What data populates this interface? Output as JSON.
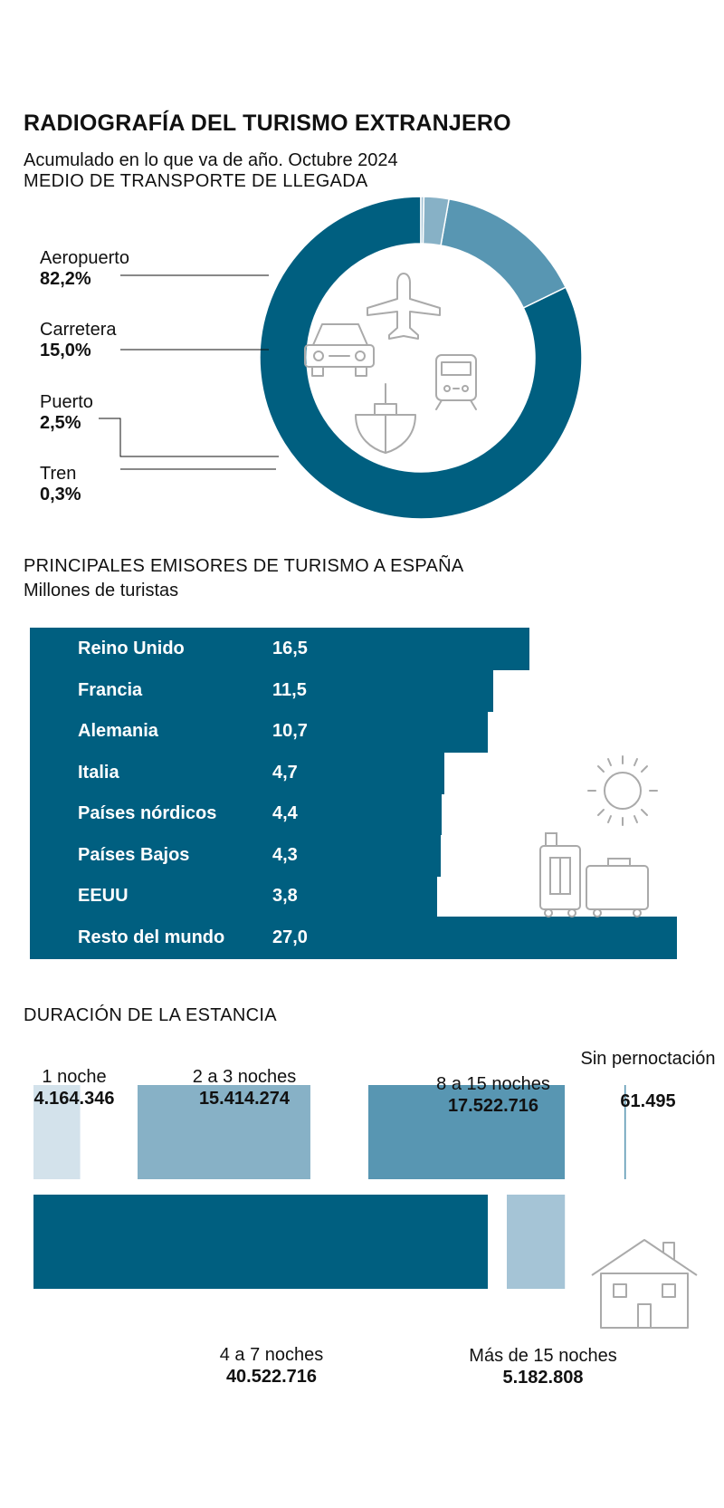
{
  "header": {
    "title": "RADIOGRAFÍA DEL TURISMO EXTRANJERO",
    "subtitle": "Acumulado en lo que va de año. Octubre 2024"
  },
  "transport": {
    "section_title": "MEDIO DE TRANSPORTE DE LLEGADA",
    "icons": [
      "plane-icon",
      "car-icon",
      "train-icon",
      "ship-icon"
    ]
  },
  "emitters": {
    "section_title": "PRINCIPALES EMISORES DE TURISMO A ESPAÑA",
    "unit_label": "Millones de turistas",
    "icons": [
      "sun-icon",
      "luggage-icon"
    ]
  },
  "stay": {
    "section_title": "DURACIÓN DE LA ESTANCIA",
    "icons": [
      "house-icon"
    ]
  },
  "colors": {
    "dark": "#005f80",
    "mid": "#5896b2",
    "light": "#87b1c6",
    "pale": "#a5c4d6",
    "palest": "#d3e2eb"
  },
  "chart_data": [
    {
      "type": "pie",
      "title": "MEDIO DE TRANSPORTE DE LLEGADA",
      "labels": [
        "Aeropuerto",
        "Carretera",
        "Puerto",
        "Tren"
      ],
      "display_values": [
        "82,2%",
        "15,0%",
        "2,5%",
        "0,3%"
      ],
      "values": [
        82.2,
        15.0,
        2.5,
        0.3
      ],
      "colors": [
        "#005f80",
        "#5896b2",
        "#87b1c6",
        "#a5c4d6"
      ]
    },
    {
      "type": "bar",
      "title": "PRINCIPALES EMISORES DE TURISMO A ESPAÑA",
      "ylabel": "Millones de turistas",
      "categories": [
        "Reino Unido",
        "Francia",
        "Alemania",
        "Italia",
        "Países nórdicos",
        "Países Bajos",
        "EEUU",
        "Resto del mundo"
      ],
      "display_values": [
        "16,5",
        "11,5",
        "10,7",
        "4,7",
        "4,4",
        "4,3",
        "3,8",
        "27,0"
      ],
      "values": [
        16.5,
        11.5,
        10.7,
        4.7,
        4.4,
        4.3,
        3.8,
        27.0
      ]
    },
    {
      "type": "bar",
      "title": "DURACIÓN DE LA ESTANCIA",
      "categories": [
        "1 noche",
        "2 a 3 noches",
        "8 a 15 noches",
        "Sin pernoctación",
        "4 a 7 noches",
        "Más de 15 noches"
      ],
      "display_values": [
        "4.164.346",
        "15.414.274",
        "17.522.716",
        "61.495",
        "40.522.716",
        "5.182.808"
      ],
      "values": [
        4164346,
        15414274,
        17522716,
        61495,
        40522716,
        5182808
      ],
      "colors": [
        "#d3e2eb",
        "#87b1c6",
        "#5896b2",
        "#5896b2",
        "#005f80",
        "#a5c4d6"
      ]
    }
  ]
}
